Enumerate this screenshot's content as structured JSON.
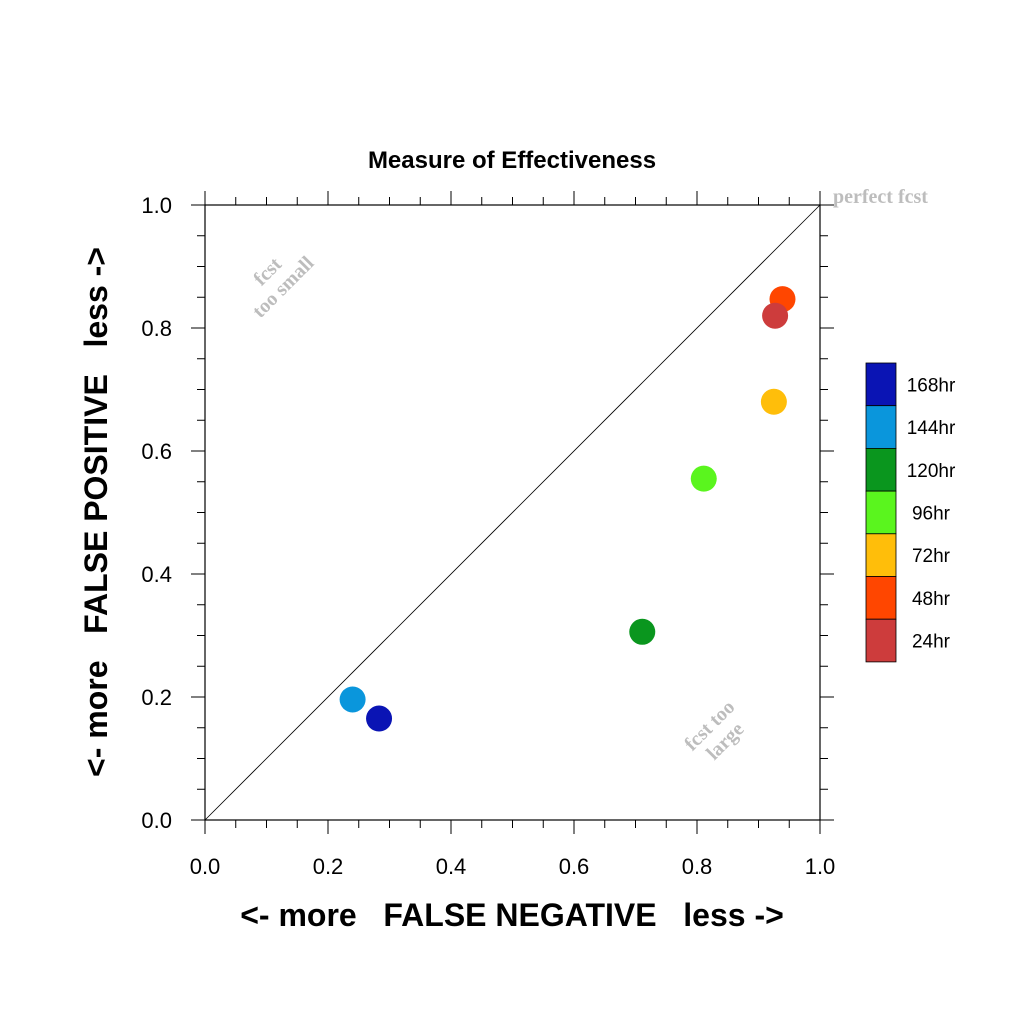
{
  "chart_data": {
    "type": "scatter",
    "title": "Measure of Effectiveness",
    "xlabel": "<- more   FALSE NEGATIVE   less ->",
    "ylabel": "<- more   FALSE POSITIVE   less ->",
    "xlim": [
      0.0,
      1.0
    ],
    "ylim": [
      0.0,
      1.0
    ],
    "xticks": [
      "0.0",
      "0.2",
      "0.4",
      "0.6",
      "0.8",
      "1.0"
    ],
    "yticks": [
      "0.0",
      "0.2",
      "0.4",
      "0.6",
      "0.8",
      "1.0"
    ],
    "grid": false,
    "legend_placement": "right",
    "reference_line": "diagonal",
    "annotations": {
      "perfect": "perfect fcst",
      "too_small_line1": "fcst",
      "too_small_line2": "too small",
      "too_large_line1": "fcst too",
      "too_large_line2": "large"
    },
    "series": [
      {
        "name": "168hr",
        "color": "#0a14b4",
        "x": 0.283,
        "y": 0.165
      },
      {
        "name": "144hr",
        "color": "#0a96dc",
        "x": 0.24,
        "y": 0.196
      },
      {
        "name": "120hr",
        "color": "#0a961e",
        "x": 0.711,
        "y": 0.306
      },
      {
        "name": "96hr",
        "color": "#5af51e",
        "x": 0.811,
        "y": 0.555
      },
      {
        "name": "72hr",
        "color": "#ffbe0a",
        "x": 0.925,
        "y": 0.68
      },
      {
        "name": "48hr",
        "color": "#ff4600",
        "x": 0.939,
        "y": 0.847
      },
      {
        "name": "24hr",
        "color": "#cd3c3c",
        "x": 0.927,
        "y": 0.82
      }
    ]
  }
}
